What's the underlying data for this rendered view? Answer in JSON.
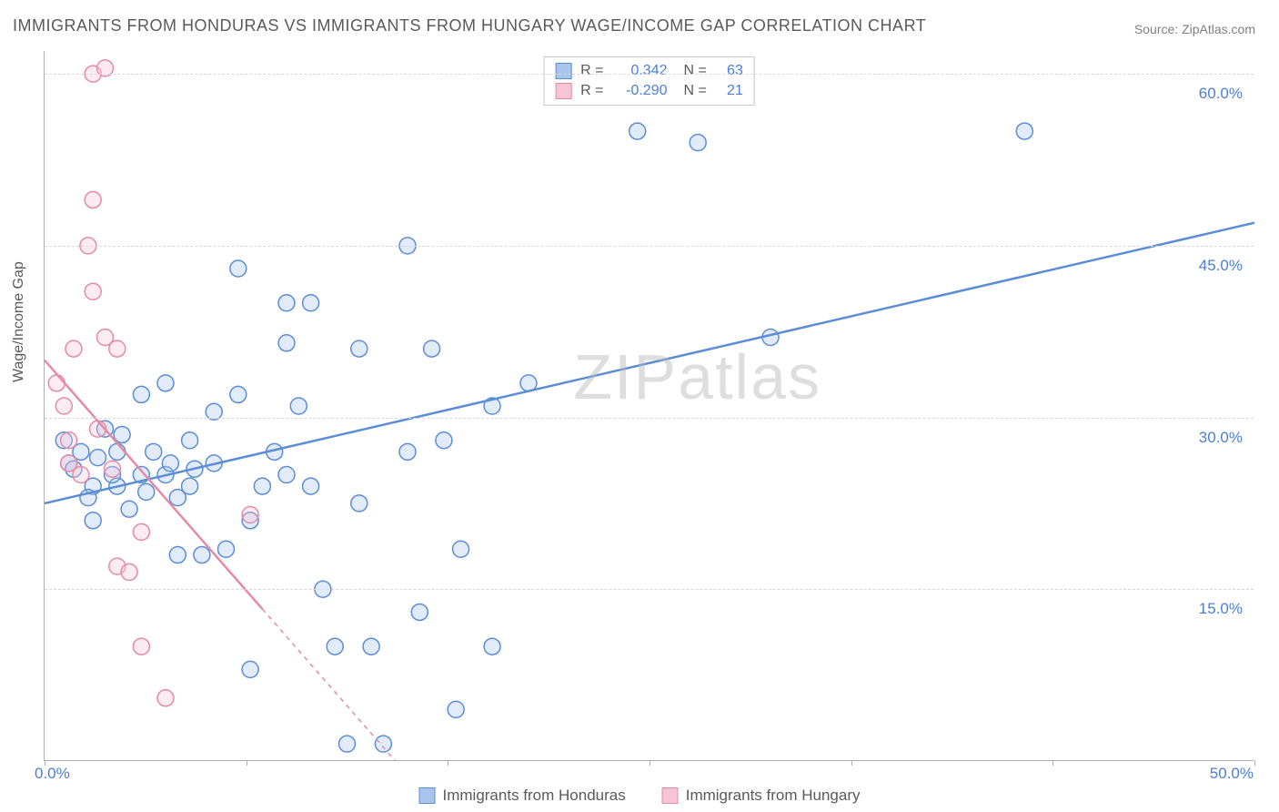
{
  "title": "IMMIGRANTS FROM HONDURAS VS IMMIGRANTS FROM HUNGARY WAGE/INCOME GAP CORRELATION CHART",
  "source_label": "Source: ZipAtlas.com",
  "ylabel": "Wage/Income Gap",
  "watermark": "ZIPatlas",
  "chart": {
    "type": "scatter-with-regression",
    "background_color": "#ffffff",
    "grid_color": "#d8d8d8",
    "axis_color": "#b0b0b0",
    "tick_label_color": "#4a7fd8",
    "xlim": [
      0,
      50
    ],
    "ylim": [
      0,
      62
    ],
    "xticks": [
      0,
      8.33,
      16.67,
      25,
      33.33,
      41.67,
      50
    ],
    "xtick_labels": [
      "0.0%",
      "",
      "",
      "",
      "",
      "",
      "50.0%"
    ],
    "yticks": [
      15,
      30,
      45,
      60
    ],
    "ytick_labels": [
      "15.0%",
      "30.0%",
      "45.0%",
      "60.0%"
    ],
    "marker_radius": 9,
    "marker_stroke_width": 1.5,
    "marker_fill_opacity": 0.35,
    "regression_line_width": 2.5,
    "series": [
      {
        "name": "Immigrants from Honduras",
        "color": "#5b8dd6",
        "fill": "#a9c5ed",
        "R": "0.342",
        "N": "63",
        "regression": {
          "x1": 0,
          "y1": 22.5,
          "x2": 50,
          "y2": 47,
          "dashed_after_x": null
        },
        "points": [
          [
            1,
            26
          ],
          [
            1.5,
            27
          ],
          [
            2,
            24
          ],
          [
            2,
            21
          ],
          [
            2.5,
            29
          ],
          [
            3,
            27
          ],
          [
            3,
            24
          ],
          [
            3.5,
            22
          ],
          [
            4,
            32
          ],
          [
            4,
            25
          ],
          [
            4.5,
            27
          ],
          [
            5,
            33
          ],
          [
            5,
            25
          ],
          [
            5.5,
            23
          ],
          [
            5.5,
            18
          ],
          [
            6,
            28
          ],
          [
            6,
            24
          ],
          [
            6.5,
            18
          ],
          [
            7,
            26
          ],
          [
            7,
            30.5
          ],
          [
            7.5,
            18.5
          ],
          [
            8,
            43
          ],
          [
            8,
            32
          ],
          [
            8.5,
            21
          ],
          [
            8.5,
            8
          ],
          [
            9,
            24
          ],
          [
            9.5,
            27
          ],
          [
            10,
            40
          ],
          [
            10,
            36.5
          ],
          [
            10,
            25
          ],
          [
            10.5,
            31
          ],
          [
            11,
            40
          ],
          [
            11,
            24
          ],
          [
            11.5,
            15
          ],
          [
            12,
            10
          ],
          [
            12.5,
            1.5
          ],
          [
            13,
            36
          ],
          [
            13,
            22.5
          ],
          [
            13.5,
            10
          ],
          [
            14,
            1.5
          ],
          [
            15,
            45
          ],
          [
            15,
            27
          ],
          [
            15.5,
            13
          ],
          [
            16,
            36
          ],
          [
            16.5,
            28
          ],
          [
            17,
            4.5
          ],
          [
            17.2,
            18.5
          ],
          [
            18.5,
            31
          ],
          [
            18.5,
            10
          ],
          [
            20,
            33
          ],
          [
            24.5,
            55
          ],
          [
            27,
            54
          ],
          [
            30,
            37
          ],
          [
            40.5,
            55
          ],
          [
            0.8,
            28
          ],
          [
            1.2,
            25.5
          ],
          [
            1.8,
            23
          ],
          [
            2.2,
            26.5
          ],
          [
            2.8,
            25
          ],
          [
            3.2,
            28.5
          ],
          [
            4.2,
            23.5
          ],
          [
            5.2,
            26
          ],
          [
            6.2,
            25.5
          ]
        ]
      },
      {
        "name": "Immigrants from Hungary",
        "color": "#e68aa4",
        "fill": "#f5c5d3",
        "R": "-0.290",
        "N": "21",
        "regression": {
          "x1": 0,
          "y1": 35,
          "x2": 14.5,
          "y2": 0,
          "dashed_after_x": 9
        },
        "points": [
          [
            0.5,
            33
          ],
          [
            0.8,
            31
          ],
          [
            1,
            28
          ],
          [
            1,
            26
          ],
          [
            1.2,
            36
          ],
          [
            1.5,
            25
          ],
          [
            1.8,
            45
          ],
          [
            2,
            60
          ],
          [
            2,
            49
          ],
          [
            2,
            41
          ],
          [
            2.2,
            29
          ],
          [
            2.5,
            60.5
          ],
          [
            2.5,
            37
          ],
          [
            2.8,
            25.5
          ],
          [
            3,
            36
          ],
          [
            3,
            17
          ],
          [
            3.5,
            16.5
          ],
          [
            4,
            10
          ],
          [
            4,
            20
          ],
          [
            5,
            5.5
          ],
          [
            8.5,
            21.5
          ]
        ]
      }
    ]
  },
  "stats_legend": {
    "rows": [
      {
        "swatch_fill": "#a9c5ed",
        "swatch_border": "#5b8dd6",
        "R": "0.342",
        "N": "63"
      },
      {
        "swatch_fill": "#f5c5d3",
        "swatch_border": "#e68aa4",
        "R": "-0.290",
        "N": "21"
      }
    ]
  },
  "bottom_legend": {
    "items": [
      {
        "swatch_fill": "#a9c5ed",
        "swatch_border": "#5b8dd6",
        "label": "Immigrants from Honduras"
      },
      {
        "swatch_fill": "#f5c5d3",
        "swatch_border": "#e68aa4",
        "label": "Immigrants from Hungary"
      }
    ]
  }
}
